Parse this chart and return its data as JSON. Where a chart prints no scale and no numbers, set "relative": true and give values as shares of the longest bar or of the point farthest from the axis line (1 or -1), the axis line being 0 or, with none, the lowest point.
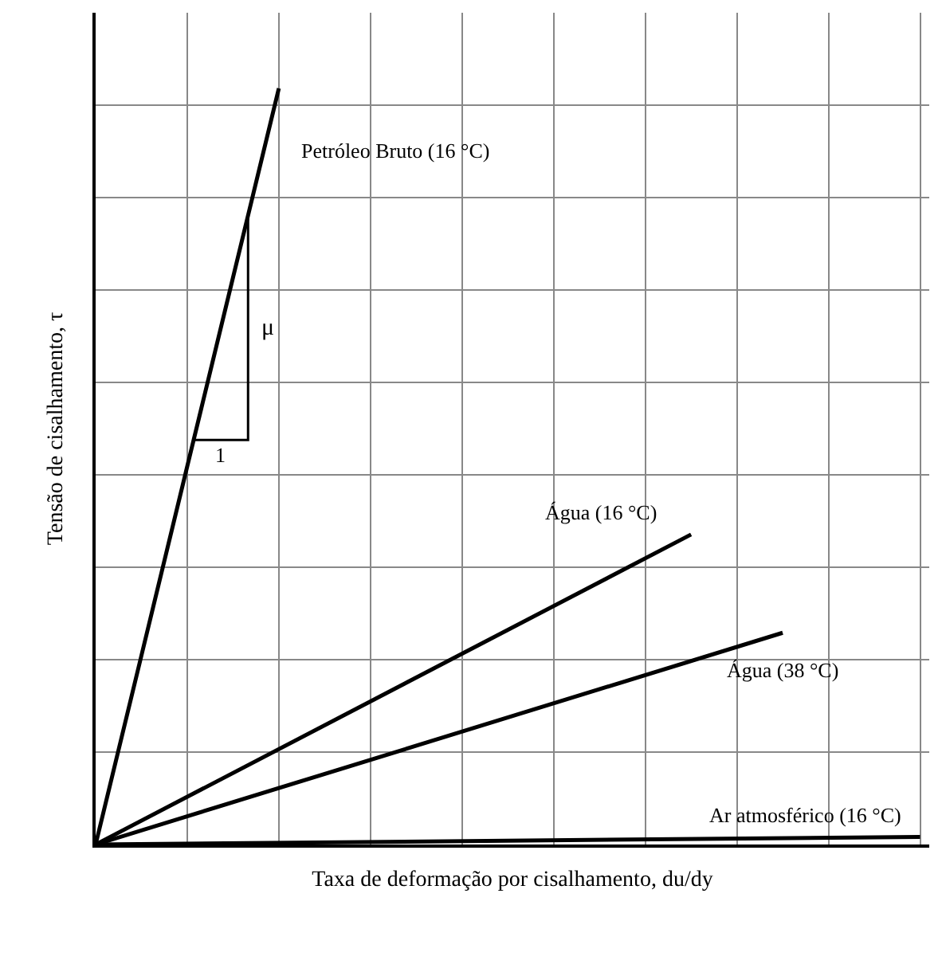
{
  "chart_data": {
    "type": "line",
    "relative": true,
    "grid": true,
    "legend": false,
    "marker": "none",
    "line_style": "solid",
    "xlabel": "Taxa de deformação por cisalhamento, du/dy",
    "ylabel": "Tensão de cisalhamento, τ",
    "annotations": [
      "μ",
      "1"
    ],
    "categories": [
      null,
      null,
      null,
      null,
      null,
      null,
      null,
      null,
      null,
      null,
      null,
      null,
      null,
      null,
      null,
      null,
      null,
      null,
      null
    ],
    "series": [
      {
        "name": "Petróleo Bruto (16 °C)",
        "color": "#000000",
        "values": [
          0,
          0.25,
          0.5,
          0.75,
          1,
          null,
          null,
          null,
          null,
          null,
          null,
          null,
          null,
          null,
          null,
          null,
          null,
          null,
          null
        ]
      },
      {
        "name": "Água (16 °C)",
        "color": "#000000",
        "values": [
          0,
          null,
          null,
          null,
          null,
          null,
          null,
          null,
          null,
          null,
          null,
          null,
          null,
          0.41,
          null,
          null,
          null,
          null,
          null
        ]
      },
      {
        "name": "Água (38 °C)",
        "color": "#000000",
        "values": [
          0,
          null,
          null,
          null,
          null,
          null,
          null,
          null,
          null,
          null,
          null,
          null,
          null,
          null,
          null,
          0.28,
          null,
          null,
          null
        ]
      },
      {
        "name": "Ar atmosférico (16 °C)",
        "color": "#000000",
        "values": [
          0,
          null,
          null,
          null,
          null,
          null,
          null,
          null,
          null,
          null,
          null,
          null,
          null,
          null,
          null,
          null,
          null,
          null,
          0.01
        ]
      }
    ]
  }
}
